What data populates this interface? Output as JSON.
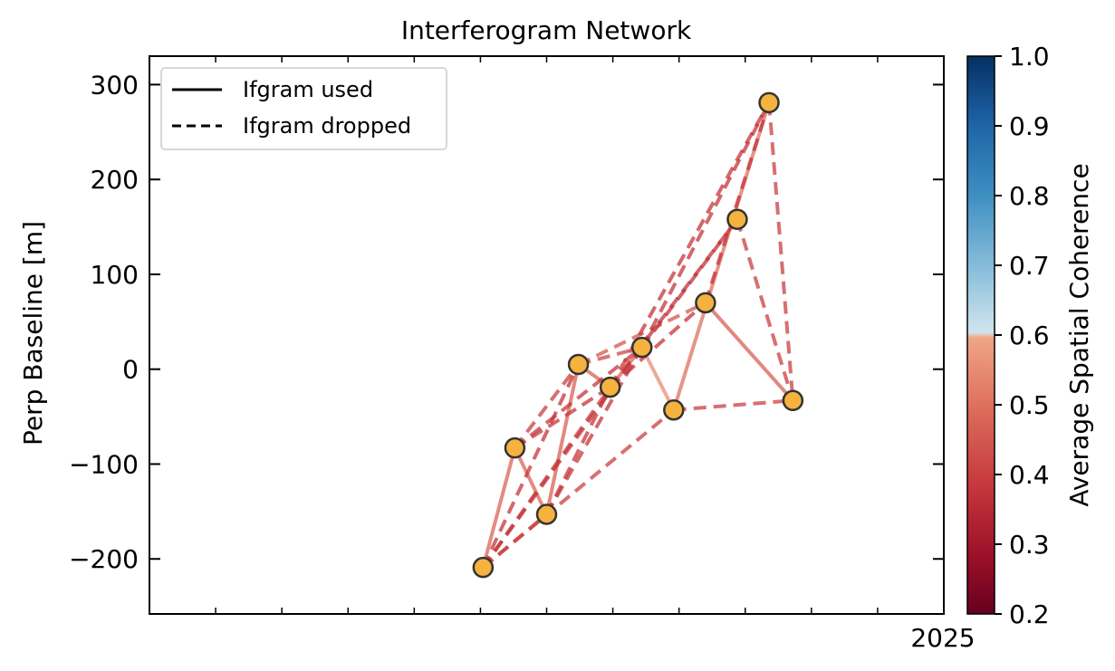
{
  "chart_data": {
    "type": "line",
    "title": "Interferogram Network",
    "xlabel": "",
    "ylabel": "Perp Baseline [m]",
    "ylim": [
      -258,
      330
    ],
    "yticks": [
      -200,
      -100,
      0,
      100,
      200,
      300
    ],
    "ytick_labels": [
      "−200",
      "−100",
      "0",
      "100",
      "200",
      "300"
    ],
    "x_label_2025": "2025",
    "acquisitions": [
      {
        "id": "A",
        "x": 2024.42,
        "y": -209
      },
      {
        "id": "B",
        "x": 2024.46,
        "y": -83
      },
      {
        "id": "C",
        "x": 2024.5,
        "y": -153
      },
      {
        "id": "D",
        "x": 2024.54,
        "y": 5
      },
      {
        "id": "E",
        "x": 2024.58,
        "y": -19
      },
      {
        "id": "F",
        "x": 2024.62,
        "y": 23
      },
      {
        "id": "G",
        "x": 2024.66,
        "y": -43
      },
      {
        "id": "H",
        "x": 2024.7,
        "y": 70
      },
      {
        "id": "I",
        "x": 2024.74,
        "y": 158
      },
      {
        "id": "J",
        "x": 2024.78,
        "y": 281
      },
      {
        "id": "K",
        "x": 2024.81,
        "y": -33
      }
    ],
    "ifgrams": [
      {
        "from": "A",
        "to": "B",
        "status": "used",
        "coherence": 0.48
      },
      {
        "from": "B",
        "to": "C",
        "status": "used",
        "coherence": 0.48
      },
      {
        "from": "C",
        "to": "D",
        "status": "used",
        "coherence": 0.47
      },
      {
        "from": "D",
        "to": "E",
        "status": "used",
        "coherence": 0.47
      },
      {
        "from": "E",
        "to": "F",
        "status": "used",
        "coherence": 0.48
      },
      {
        "from": "F",
        "to": "G",
        "status": "used",
        "coherence": 0.55
      },
      {
        "from": "G",
        "to": "J",
        "status": "used",
        "coherence": 0.5
      },
      {
        "from": "H",
        "to": "K",
        "status": "used",
        "coherence": 0.47
      },
      {
        "from": "A",
        "to": "C",
        "status": "dropped",
        "coherence": 0.4
      },
      {
        "from": "A",
        "to": "D",
        "status": "dropped",
        "coherence": 0.38
      },
      {
        "from": "A",
        "to": "E",
        "status": "dropped",
        "coherence": 0.38
      },
      {
        "from": "A",
        "to": "F",
        "status": "dropped",
        "coherence": 0.38
      },
      {
        "from": "A",
        "to": "G",
        "status": "dropped",
        "coherence": 0.4
      },
      {
        "from": "B",
        "to": "D",
        "status": "dropped",
        "coherence": 0.4
      },
      {
        "from": "B",
        "to": "E",
        "status": "dropped",
        "coherence": 0.38
      },
      {
        "from": "B",
        "to": "F",
        "status": "dropped",
        "coherence": 0.38
      },
      {
        "from": "C",
        "to": "E",
        "status": "dropped",
        "coherence": 0.38
      },
      {
        "from": "C",
        "to": "F",
        "status": "dropped",
        "coherence": 0.38
      },
      {
        "from": "D",
        "to": "F",
        "status": "dropped",
        "coherence": 0.42
      },
      {
        "from": "D",
        "to": "H",
        "status": "dropped",
        "coherence": 0.45
      },
      {
        "from": "E",
        "to": "H",
        "status": "dropped",
        "coherence": 0.38
      },
      {
        "from": "E",
        "to": "I",
        "status": "dropped",
        "coherence": 0.37
      },
      {
        "from": "E",
        "to": "J",
        "status": "dropped",
        "coherence": 0.38
      },
      {
        "from": "F",
        "to": "I",
        "status": "dropped",
        "coherence": 0.37
      },
      {
        "from": "F",
        "to": "J",
        "status": "dropped",
        "coherence": 0.38
      },
      {
        "from": "G",
        "to": "K",
        "status": "dropped",
        "coherence": 0.4
      },
      {
        "from": "H",
        "to": "J",
        "status": "dropped",
        "coherence": 0.38
      },
      {
        "from": "I",
        "to": "K",
        "status": "dropped",
        "coherence": 0.4
      },
      {
        "from": "J",
        "to": "K",
        "status": "dropped",
        "coherence": 0.4
      }
    ],
    "legend": {
      "position": "top-left",
      "entries": [
        {
          "label": "Ifgram used",
          "style": "solid"
        },
        {
          "label": "Ifgram dropped",
          "style": "dashed"
        }
      ]
    },
    "colorbar": {
      "label": "Average Spatial Coherence",
      "range": [
        0.2,
        1.0
      ],
      "ticks": [
        "0.2",
        "0.3",
        "0.4",
        "0.5",
        "0.6",
        "0.7",
        "0.8",
        "0.9",
        "1.0"
      ],
      "colormap": "RdBu truncated"
    },
    "grid": false,
    "marker_color": "#f6b23e",
    "marker_edge_color": "#333333"
  }
}
